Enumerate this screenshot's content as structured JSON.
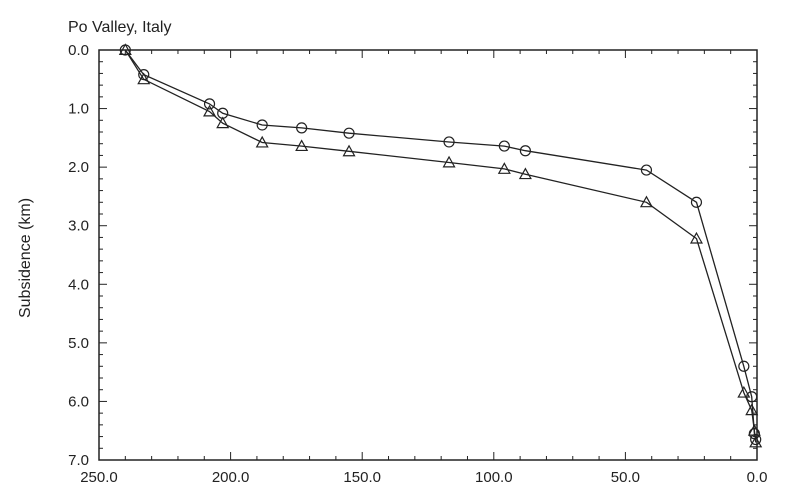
{
  "chart_data": {
    "type": "line",
    "title": "Po Valley, Italy",
    "xlabel": "",
    "ylabel": "Subsidence (km)",
    "xlim": [
      250.0,
      0.0
    ],
    "ylim": [
      0.0,
      7.0
    ],
    "x_reversed": true,
    "y_reversed": true,
    "x_ticks": [
      250,
      200,
      150,
      100,
      50,
      0
    ],
    "x_tick_labels": [
      "250.0",
      "200.0",
      "150.0",
      "100.0",
      "50.0",
      "0.0"
    ],
    "y_ticks": [
      0,
      1,
      2,
      3,
      4,
      5,
      6,
      7
    ],
    "y_tick_labels": [
      "0.0",
      "1.0",
      "2.0",
      "3.0",
      "4.0",
      "5.0",
      "6.0",
      "7.0"
    ],
    "grid": false,
    "series": [
      {
        "marker": "circle",
        "x": [
          240,
          233,
          208,
          203,
          188,
          173,
          155,
          117,
          96,
          88,
          42,
          23,
          5,
          2,
          1,
          0.5
        ],
        "y": [
          0.0,
          0.42,
          0.92,
          1.08,
          1.28,
          1.33,
          1.42,
          1.57,
          1.64,
          1.72,
          2.05,
          2.6,
          5.4,
          5.92,
          6.55,
          6.65
        ]
      },
      {
        "marker": "triangle",
        "x": [
          240,
          233,
          208,
          203,
          188,
          173,
          155,
          117,
          96,
          88,
          42,
          23,
          5,
          2,
          1,
          0.5
        ],
        "y": [
          0.0,
          0.5,
          1.05,
          1.25,
          1.58,
          1.64,
          1.73,
          1.92,
          2.03,
          2.12,
          2.6,
          3.22,
          5.85,
          6.15,
          6.5,
          6.7
        ]
      }
    ]
  }
}
